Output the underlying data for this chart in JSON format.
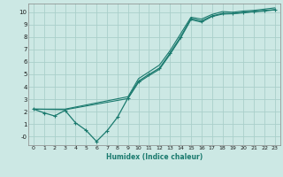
{
  "title": "",
  "xlabel": "Humidex (Indice chaleur)",
  "background_color": "#cce8e4",
  "grid_color": "#aacfca",
  "line_color": "#1a7a6e",
  "xlim": [
    -0.5,
    23.5
  ],
  "ylim": [
    -0.7,
    10.7
  ],
  "xticks": [
    0,
    1,
    2,
    3,
    4,
    5,
    6,
    7,
    8,
    9,
    10,
    11,
    12,
    13,
    14,
    15,
    16,
    17,
    18,
    19,
    20,
    21,
    22,
    23
  ],
  "yticks": [
    0,
    1,
    2,
    3,
    4,
    5,
    6,
    7,
    8,
    9,
    10
  ],
  "ytick_labels": [
    "-0",
    "1",
    "2",
    "3",
    "4",
    "5",
    "6",
    "7",
    "8",
    "9",
    "10"
  ],
  "main_x": [
    0,
    1,
    2,
    3,
    4,
    5,
    6,
    7,
    8,
    9,
    10,
    11,
    12,
    13,
    14,
    15,
    16,
    17,
    18,
    19,
    20,
    21,
    22,
    23
  ],
  "main_y": [
    2.2,
    1.9,
    1.65,
    2.1,
    1.1,
    0.5,
    -0.4,
    0.45,
    1.55,
    3.1,
    4.45,
    5.0,
    5.5,
    6.7,
    8.0,
    9.5,
    9.3,
    9.7,
    9.9,
    9.9,
    10.0,
    10.05,
    10.1,
    10.2
  ],
  "upper_x": [
    0,
    3,
    9,
    10,
    11,
    12,
    13,
    14,
    15,
    16,
    17,
    18,
    19,
    20,
    21,
    22,
    23
  ],
  "upper_y": [
    2.2,
    2.2,
    3.2,
    4.65,
    5.2,
    5.75,
    6.9,
    8.25,
    9.6,
    9.45,
    9.82,
    10.05,
    10.0,
    10.1,
    10.15,
    10.25,
    10.35
  ],
  "lower_x": [
    0,
    3,
    9,
    10,
    11,
    12,
    13,
    14,
    15,
    16,
    17,
    18,
    19,
    20,
    21,
    22,
    23
  ],
  "lower_y": [
    2.2,
    2.15,
    3.05,
    4.35,
    4.9,
    5.4,
    6.6,
    7.9,
    9.4,
    9.2,
    9.65,
    9.85,
    9.88,
    9.95,
    10.05,
    10.15,
    10.2
  ]
}
